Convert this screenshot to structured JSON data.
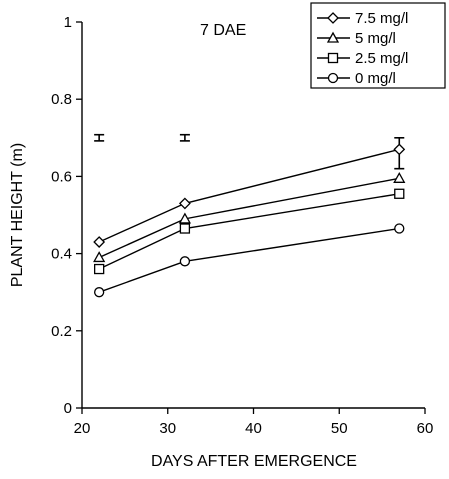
{
  "chart_data": {
    "type": "line",
    "title": "7 DAE",
    "xlabel": "DAYS AFTER EMERGENCE",
    "ylabel": "PLANT HEIGHT (m)",
    "xlim": [
      20,
      60
    ],
    "ylim": [
      0,
      1
    ],
    "xticks": [
      "20",
      "30",
      "40",
      "50",
      "60"
    ],
    "yticks": [
      "0",
      "0.2",
      "0.4",
      "0.6",
      "0.8",
      "1"
    ],
    "x": [
      22,
      32,
      57
    ],
    "series": [
      {
        "name": "7.5 mg/l",
        "marker": "diamond",
        "values": [
          0.43,
          0.53,
          0.67
        ]
      },
      {
        "name": "5 mg/l",
        "marker": "triangle",
        "values": [
          0.39,
          0.49,
          0.595
        ]
      },
      {
        "name": "2.5 mg/l",
        "marker": "square",
        "values": [
          0.36,
          0.465,
          0.555
        ]
      },
      {
        "name": "0 mg/l",
        "marker": "circle",
        "values": [
          0.3,
          0.38,
          0.465
        ]
      }
    ],
    "error_bars": [
      {
        "x": 22,
        "y": 0.7,
        "half": 0.008
      },
      {
        "x": 32,
        "y": 0.7,
        "half": 0.008
      },
      {
        "x": 57,
        "y": 0.66,
        "half": 0.04
      }
    ],
    "legend_position": "top-right",
    "grid": false
  }
}
